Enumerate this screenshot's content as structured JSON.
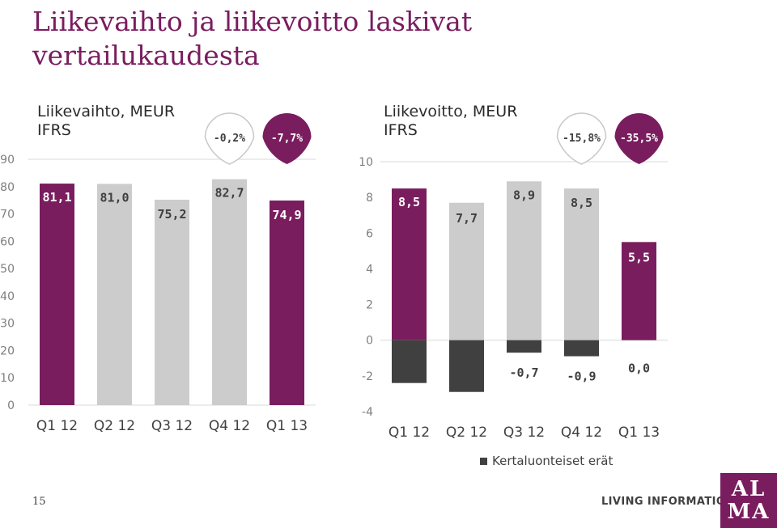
{
  "page": {
    "title": "Liikevaihto ja liikevoitto laskivat vertailukaudesta",
    "page_number": "15",
    "tagline": "LIVING INFORMATION",
    "logo_text": [
      "AL",
      "MA"
    ]
  },
  "colors": {
    "brand_purple": "#7a1d5f",
    "comparison_gray": "#cccccc",
    "one_off_dark": "#404040",
    "grid": "#d9d9d9"
  },
  "chart_data": [
    {
      "type": "bar",
      "title_lines": [
        "Liikevaihto, MEUR",
        "IFRS"
      ],
      "categories": [
        "Q1 12",
        "Q2 12",
        "Q3 12",
        "Q4 12",
        "Q1 13"
      ],
      "values": [
        81.1,
        81.0,
        75.2,
        82.7,
        74.9
      ],
      "value_labels": [
        "81,1",
        "81,0",
        "75,2",
        "82,7",
        "74,9"
      ],
      "bar_colors": [
        "#7a1d5f",
        "#cccccc",
        "#cccccc",
        "#cccccc",
        "#7a1d5f"
      ],
      "ylim": [
        0,
        90
      ],
      "yticks": [
        0,
        10,
        20,
        30,
        40,
        50,
        60,
        70,
        80,
        90
      ],
      "grid": false,
      "change_badges": [
        {
          "label": "-0,2%",
          "style": "outline",
          "anchor_category": 3
        },
        {
          "label": "-7,7%",
          "style": "filled",
          "anchor_category": 4
        }
      ]
    },
    {
      "type": "bar",
      "title_lines": [
        "Liikevoitto, MEUR",
        "IFRS"
      ],
      "categories": [
        "Q1 12",
        "Q2 12",
        "Q3 12",
        "Q4 12",
        "Q1 13"
      ],
      "series": [
        {
          "values": [
            8.5,
            7.7,
            8.9,
            8.5,
            5.5
          ],
          "value_labels": [
            "8,5",
            "7,7",
            "8,9",
            "8,5",
            "5,5"
          ],
          "bar_colors": [
            "#7a1d5f",
            "#cccccc",
            "#cccccc",
            "#cccccc",
            "#7a1d5f"
          ]
        },
        {
          "name": "Kertaluonteiset erät",
          "values": [
            -2.4,
            -2.9,
            -0.7,
            -0.9,
            0.0
          ],
          "value_labels": [
            "",
            "",
            "-0,7",
            "-0,9",
            "0,0"
          ],
          "color": "#404040"
        }
      ],
      "ylim": [
        -4,
        10
      ],
      "yticks": [
        -4,
        -2,
        0,
        2,
        4,
        6,
        8,
        10
      ],
      "grid": false,
      "legend_position": "bottom",
      "change_badges": [
        {
          "label": "-15,8%",
          "style": "outline",
          "anchor_category": 3
        },
        {
          "label": "-35,5%",
          "style": "filled",
          "anchor_category": 4
        }
      ]
    }
  ]
}
